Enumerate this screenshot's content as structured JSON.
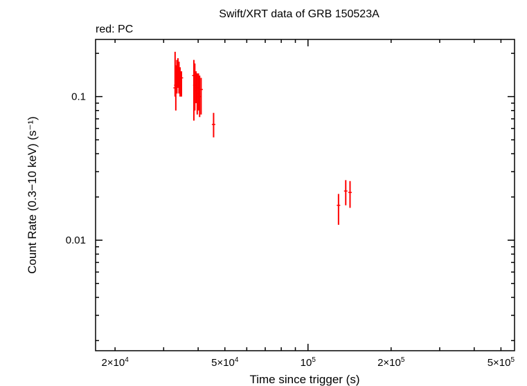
{
  "chart_data": {
    "type": "scatter",
    "title": "Swift/XRT data of GRB 150523A",
    "subtitle": "red: PC",
    "xlabel": "Time since trigger (s)",
    "ylabel": "Count Rate (0.3−10 keV) (s⁻¹)",
    "x_scale": "log",
    "y_scale": "log",
    "xlim": [
      17000,
      560000
    ],
    "ylim": [
      0.0017,
      0.25
    ],
    "x_tick_labels": [
      {
        "value": 20000,
        "mant": "2×10",
        "exp": "4"
      },
      {
        "value": 50000,
        "mant": "5×10",
        "exp": "4"
      },
      {
        "value": 100000,
        "mant": "10",
        "exp": "5"
      },
      {
        "value": 200000,
        "mant": "2×10",
        "exp": "5"
      },
      {
        "value": 500000,
        "mant": "5×10",
        "exp": "5"
      }
    ],
    "y_tick_labels": [
      {
        "value": 0.1,
        "label": "0.1"
      },
      {
        "value": 0.01,
        "label": "0.01"
      }
    ],
    "grid": false,
    "series": [
      {
        "name": "PC",
        "color": "#ff0000",
        "points": [
          {
            "x": 33000,
            "y": 0.115,
            "ylo": 0.1,
            "yhi": 0.205
          },
          {
            "x": 33200,
            "y": 0.12,
            "ylo": 0.08,
            "yhi": 0.165
          },
          {
            "x": 33500,
            "y": 0.14,
            "ylo": 0.105,
            "yhi": 0.18
          },
          {
            "x": 33800,
            "y": 0.15,
            "ylo": 0.115,
            "yhi": 0.185
          },
          {
            "x": 34100,
            "y": 0.13,
            "ylo": 0.105,
            "yhi": 0.175
          },
          {
            "x": 34400,
            "y": 0.12,
            "ylo": 0.1,
            "yhi": 0.16
          },
          {
            "x": 34800,
            "y": 0.135,
            "ylo": 0.1,
            "yhi": 0.15
          },
          {
            "x": 38600,
            "y": 0.14,
            "ylo": 0.068,
            "yhi": 0.18
          },
          {
            "x": 38900,
            "y": 0.12,
            "ylo": 0.08,
            "yhi": 0.17
          },
          {
            "x": 39300,
            "y": 0.11,
            "ylo": 0.09,
            "yhi": 0.15
          },
          {
            "x": 39700,
            "y": 0.115,
            "ylo": 0.075,
            "yhi": 0.145
          },
          {
            "x": 40100,
            "y": 0.105,
            "ylo": 0.08,
            "yhi": 0.145
          },
          {
            "x": 40500,
            "y": 0.1,
            "ylo": 0.072,
            "yhi": 0.14
          },
          {
            "x": 41000,
            "y": 0.112,
            "ylo": 0.075,
            "yhi": 0.135
          },
          {
            "x": 45500,
            "y": 0.064,
            "ylo": 0.052,
            "yhi": 0.077
          },
          {
            "x": 129000,
            "y": 0.0175,
            "ylo": 0.0128,
            "yhi": 0.021
          },
          {
            "x": 137000,
            "y": 0.022,
            "ylo": 0.0175,
            "yhi": 0.0262
          },
          {
            "x": 142000,
            "y": 0.0215,
            "ylo": 0.0168,
            "yhi": 0.0258
          }
        ]
      }
    ]
  }
}
